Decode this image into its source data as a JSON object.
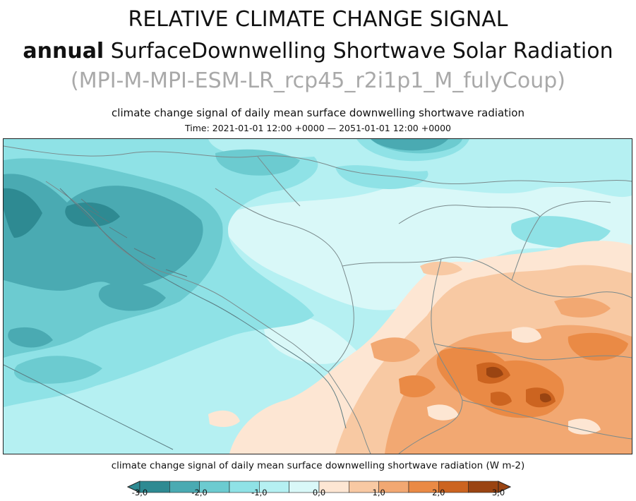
{
  "header": {
    "title_line1": "RELATIVE CLIMATE CHANGE SIGNAL",
    "title_line2_bold": "annual",
    "title_line2_rest": " SurfaceDownwelling Shortwave Solar Radiation",
    "title_line3": "(MPI-M-MPI-ESM-LR_rcp45_r2i1p1_M_fulyCoup)"
  },
  "map": {
    "subtitle": "climate change signal of daily mean surface downwelling shortwave radiation",
    "time_label": "Time: 2021-01-01 12:00 +0000 — 2051-01-01 12:00 +0000"
  },
  "colorbar": {
    "title": "climate change signal of daily mean surface downwelling shortwave radiation (W m-2)",
    "ticks": [
      "-3,0",
      "-2,0",
      "-1,0",
      "0,0",
      "1,0",
      "2,0",
      "3,0"
    ],
    "bins": [
      {
        "from": -3.0,
        "to": -2.5,
        "color": "#2e8a92"
      },
      {
        "from": -2.5,
        "to": -2.0,
        "color": "#4aaab2"
      },
      {
        "from": -2.0,
        "to": -1.5,
        "color": "#6ccbd0"
      },
      {
        "from": -1.5,
        "to": -1.0,
        "color": "#8fe2e6"
      },
      {
        "from": -1.0,
        "to": -0.5,
        "color": "#b5f0f2"
      },
      {
        "from": -0.5,
        "to": 0.0,
        "color": "#d9f8f8"
      },
      {
        "from": 0.0,
        "to": 0.5,
        "color": "#fde6d3"
      },
      {
        "from": 0.5,
        "to": 1.0,
        "color": "#f8c9a3"
      },
      {
        "from": 1.0,
        "to": 1.5,
        "color": "#f2a872"
      },
      {
        "from": 1.5,
        "to": 2.0,
        "color": "#ea8a45"
      },
      {
        "from": 2.0,
        "to": 2.5,
        "color": "#cc6420"
      },
      {
        "from": 2.5,
        "to": 3.0,
        "color": "#9a4412"
      }
    ],
    "under_color": "#2e8a92",
    "over_color": "#9a4412"
  }
}
